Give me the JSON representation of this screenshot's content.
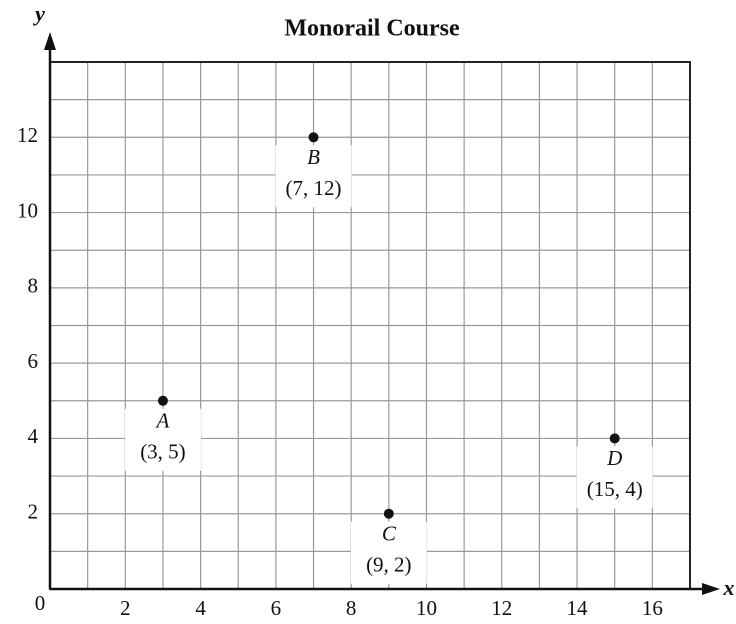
{
  "chart_data": {
    "type": "scatter",
    "title": "Monorail Course",
    "x_label": "x",
    "y_label": "y",
    "x": [
      3,
      7,
      15,
      9
    ],
    "values": [
      5,
      12,
      4,
      2
    ],
    "point_names": [
      "A",
      "B",
      "D",
      "C"
    ],
    "value_labels": [
      "(3, 5)",
      "(7, 12)",
      "(15, 4)",
      "(9, 2)"
    ],
    "color": "#111111",
    "xlim": [
      0,
      17
    ],
    "ylim": [
      0,
      14
    ],
    "xticks": [
      0,
      2,
      4,
      6,
      8,
      10,
      12,
      14,
      16
    ],
    "yticks": [
      2,
      4,
      6,
      8,
      10,
      12
    ],
    "x_minor_ticks": [
      1,
      2,
      3,
      4,
      5,
      6,
      7,
      8,
      9,
      10,
      11,
      12,
      13,
      14,
      15,
      16
    ],
    "y_minor_ticks": [
      1,
      2,
      3,
      4,
      5,
      6,
      7,
      8,
      9,
      10,
      11,
      12,
      13
    ],
    "grid": true
  }
}
